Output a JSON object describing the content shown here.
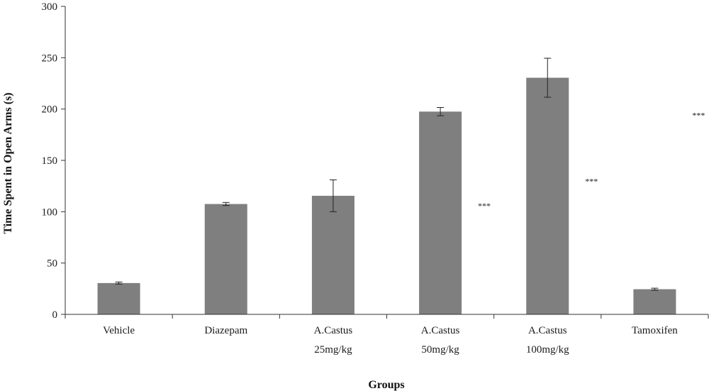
{
  "chart_data": {
    "type": "bar",
    "categories": [
      [
        "Vehicle"
      ],
      [
        "Diazepam"
      ],
      [
        "A.Castus",
        "25mg/kg"
      ],
      [
        "A.Castus",
        "50mg/kg"
      ],
      [
        "A.Castus",
        "100mg/kg"
      ],
      [
        "Tamoxifen"
      ]
    ],
    "values": [
      30.5,
      107.5,
      115.5,
      197.5,
      230.5,
      24.5
    ],
    "errors": [
      1,
      1.5,
      15.5,
      4,
      19,
      1
    ],
    "title": "",
    "xlabel": "Groups",
    "ylabel": "Time Spent in Open Arms (s)",
    "ylim": [
      0,
      300
    ],
    "yticks": [
      0,
      50,
      100,
      150,
      200,
      250,
      300
    ],
    "grid": false,
    "bar_color": "#7f7f7f",
    "annotations": [
      {
        "text": "***",
        "after_category": 3,
        "y": 103
      },
      {
        "text": "***",
        "after_category": 4,
        "y": 127
      },
      {
        "text": "***",
        "after_category": 5,
        "y": 191
      }
    ]
  }
}
